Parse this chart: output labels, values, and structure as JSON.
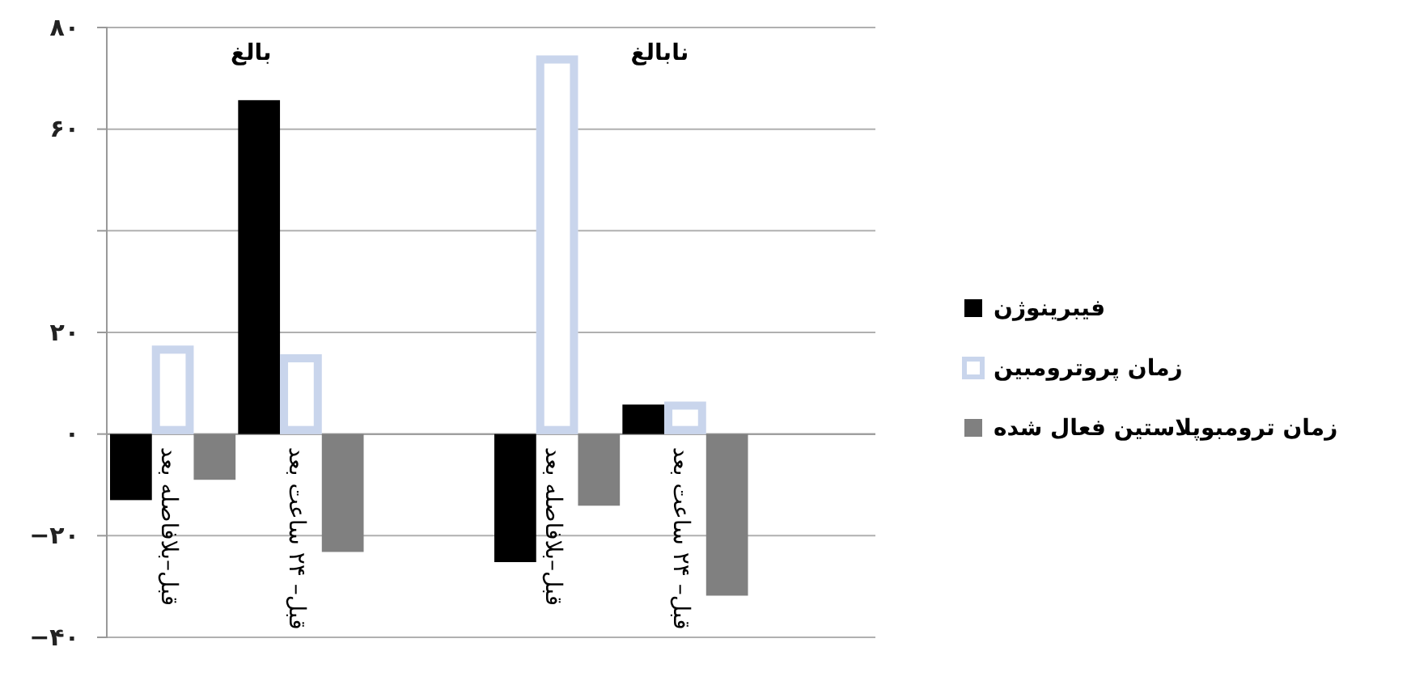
{
  "chart_data": {
    "type": "bar",
    "categories": [
      "قبل–بلافاصله بعد",
      "قبل– ۲۴ ساعت بعد",
      null,
      "قبل–بلافاصله بعد",
      "قبل– ۲۴ ساعت بعد",
      null
    ],
    "series": [
      {
        "name": "فیبرینوژن",
        "color": "#000000",
        "values": [
          -13,
          65.7,
          null,
          -25.2,
          5.8,
          null
        ]
      },
      {
        "name": "زمان پروترومبین",
        "color": "#c9d5ec",
        "values": [
          17.4,
          15.7,
          null,
          74.5,
          6.4,
          null
        ]
      },
      {
        "name": "زمان ترومبوپلاستین فعال شده",
        "color": "#808080",
        "values": [
          -9,
          -23.2,
          null,
          -14.1,
          -31.8,
          null
        ]
      }
    ],
    "annotations": [
      "بالغ",
      "نابالغ"
    ],
    "ylim": [
      -40,
      80
    ],
    "yticks": [
      {
        "value": -40,
        "label": "−۴۰"
      },
      {
        "value": -20,
        "label": "−۲۰"
      },
      {
        "value": 0,
        "label": "۰"
      },
      {
        "value": 20,
        "label": "۲۰"
      },
      {
        "value": 40,
        "label": null
      },
      {
        "value": 60,
        "label": "۶۰"
      },
      {
        "value": 80,
        "label": "۸۰"
      }
    ],
    "grid": "y",
    "legend": "right"
  }
}
